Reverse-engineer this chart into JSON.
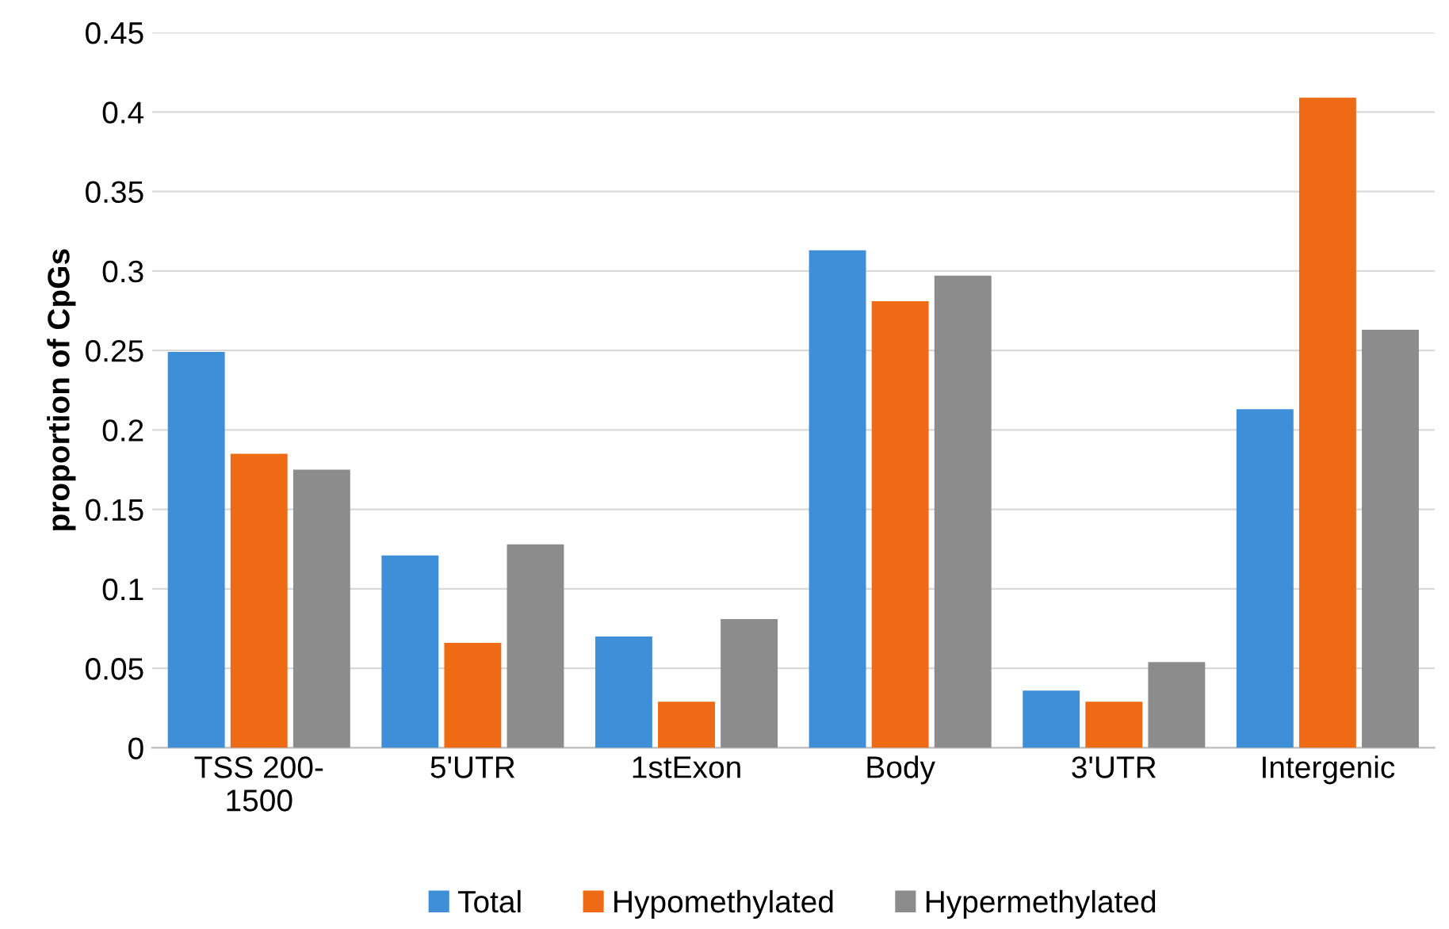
{
  "chart_data": {
    "type": "bar",
    "ylabel": "proportion of CpGs",
    "categories": [
      "TSS 200-\n1500",
      "5'UTR",
      "1stExon",
      "Body",
      "3'UTR",
      "Intergenic"
    ],
    "series": [
      {
        "name": "Total",
        "color": "#3f8fd8",
        "values": [
          0.249,
          0.121,
          0.07,
          0.313,
          0.036,
          0.213
        ]
      },
      {
        "name": "Hypomethylated",
        "color": "#ee6a15",
        "values": [
          0.185,
          0.066,
          0.029,
          0.281,
          0.029,
          0.409
        ]
      },
      {
        "name": "Hypermethylated",
        "color": "#8c8c8c",
        "values": [
          0.175,
          0.128,
          0.081,
          0.297,
          0.054,
          0.263
        ]
      }
    ],
    "ylim": [
      0,
      0.45
    ],
    "yticks": [
      0,
      {
        "value": 0.05,
        "label": "0.05"
      },
      {
        "value": 0.1,
        "label": "0.1"
      },
      {
        "value": 0.15,
        "label": "0.15"
      },
      {
        "value": 0.2,
        "label": "0.2"
      },
      {
        "value": 0.25,
        "label": "0.25"
      },
      {
        "value": 0.3,
        "label": "0.3"
      },
      {
        "value": 0.35,
        "label": "0.35"
      },
      {
        "value": 0.4,
        "label": "0.4"
      },
      {
        "value": 0.45,
        "label": "0.45"
      }
    ],
    "grid": "y",
    "legend": "bottom"
  }
}
